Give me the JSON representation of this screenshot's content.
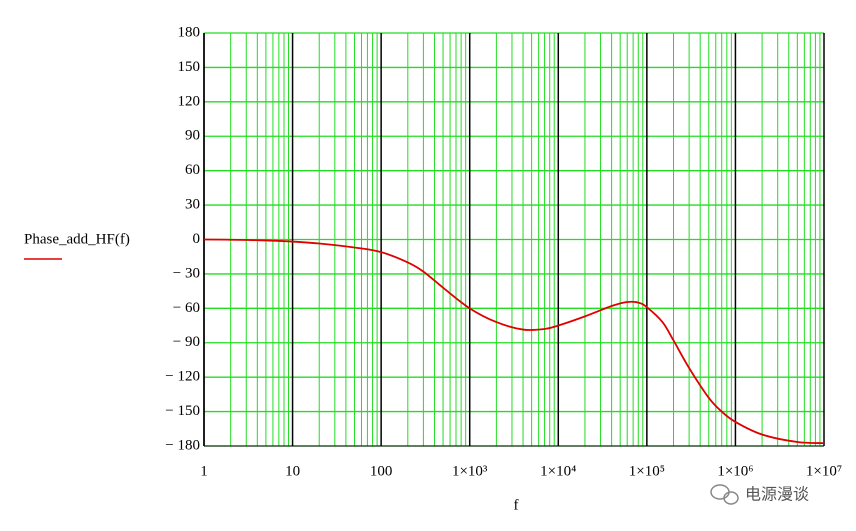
{
  "chart_data": {
    "type": "line",
    "y_label": "Phase_add_HF(f)",
    "x_label": "f",
    "watermark": "电源漫谈",
    "x": [
      1,
      2,
      5,
      10,
      20,
      50,
      100,
      200,
      300,
      500,
      1000,
      2000,
      4000,
      7000,
      10000,
      20000,
      40000,
      60000,
      80000,
      100000,
      150000,
      200000,
      300000,
      500000,
      700000,
      1000000,
      2000000,
      5000000,
      10000000
    ],
    "series": [
      {
        "name": "Phase_add_HF(f)",
        "color": "#e00000",
        "values": [
          0,
          -0.2,
          -0.8,
          -1.8,
          -3.5,
          -7,
          -11,
          -20,
          -28,
          -42,
          -60,
          -72,
          -78.5,
          -78,
          -75,
          -67,
          -58,
          -54.5,
          -55,
          -59,
          -72,
          -88,
          -112,
          -138,
          -150,
          -159,
          -170,
          -176.5,
          -177.5
        ]
      }
    ],
    "xscale": "log",
    "xlim": [
      1,
      10000000
    ],
    "xticks": [
      1,
      10,
      100,
      {
        "value": 1000,
        "label": "1×10³"
      },
      {
        "value": 10000,
        "label": "1×10⁴"
      },
      {
        "value": 100000,
        "label": "1×10⁵"
      },
      {
        "value": 1000000,
        "label": "1×10⁶"
      },
      {
        "value": 10000000,
        "label": "1×10⁷"
      }
    ],
    "ylim": [
      -180,
      180
    ],
    "yticks": [
      180,
      150,
      120,
      90,
      60,
      30,
      0,
      {
        "value": -30,
        "label": "− 30"
      },
      {
        "value": -60,
        "label": "− 60"
      },
      {
        "value": -90,
        "label": "− 90"
      },
      {
        "value": -120,
        "label": "− 120"
      },
      {
        "value": -150,
        "label": "− 150"
      },
      {
        "value": -180,
        "label": "− 180"
      }
    ],
    "grid": true,
    "grid_color": "#22dd22",
    "major_grid_color": "#000000"
  }
}
